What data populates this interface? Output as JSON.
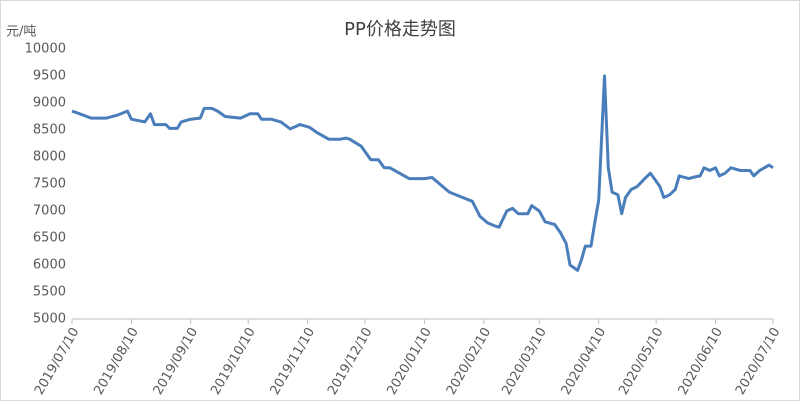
{
  "chart_data": {
    "type": "line",
    "title": "PP价格走势图",
    "y_label": "元/吨",
    "color": "#4a7ebb",
    "x": [
      "2019/07/10",
      "2019/07/14",
      "2019/07/20",
      "2019/07/28",
      "2019/08/03",
      "2019/08/08",
      "2019/08/10",
      "2019/08/17",
      "2019/08/20",
      "2019/08/22",
      "2019/08/28",
      "2019/08/30",
      "2019/09/03",
      "2019/09/05",
      "2019/09/10",
      "2019/09/15",
      "2019/09/17",
      "2019/09/21",
      "2019/09/24",
      "2019/09/28",
      "2019/10/06",
      "2019/10/11",
      "2019/10/15",
      "2019/10/17",
      "2019/10/22",
      "2019/10/27",
      "2019/11/01",
      "2019/11/06",
      "2019/11/11",
      "2019/11/15",
      "2019/11/21",
      "2019/11/27",
      "2019/11/30",
      "2019/12/02",
      "2019/12/08",
      "2019/12/13",
      "2019/12/17",
      "2019/12/20",
      "2019/12/23",
      "2019/12/28",
      "2020/01/02",
      "2020/01/08",
      "2020/01/10",
      "2020/01/14",
      "2020/01/18",
      "2020/01/23",
      "2020/01/30",
      "2020/02/04",
      "2020/02/08",
      "2020/02/12",
      "2020/02/16",
      "2020/02/18",
      "2020/02/22",
      "2020/02/25",
      "2020/02/28",
      "2020/03/04",
      "2020/03/06",
      "2020/03/10",
      "2020/03/13",
      "2020/03/18",
      "2020/03/21",
      "2020/03/24",
      "2020/03/26",
      "2020/03/30",
      "2020/04/01",
      "2020/04/03",
      "2020/04/06",
      "2020/04/08",
      "2020/04/10",
      "2020/04/13",
      "2020/04/15",
      "2020/04/17",
      "2020/04/20",
      "2020/04/22",
      "2020/04/24",
      "2020/04/27",
      "2020/04/30",
      "2020/05/04",
      "2020/05/07",
      "2020/05/09",
      "2020/05/12",
      "2020/05/14",
      "2020/05/17",
      "2020/05/20",
      "2020/05/22",
      "2020/05/27",
      "2020/05/30",
      "2020/06/02",
      "2020/06/04",
      "2020/06/07",
      "2020/06/10",
      "2020/06/12",
      "2020/06/15",
      "2020/06/18",
      "2020/06/23",
      "2020/06/28",
      "2020/06/30",
      "2020/07/03",
      "2020/07/08",
      "2020/07/10"
    ],
    "values": [
      8850,
      8800,
      8720,
      8720,
      8780,
      8850,
      8700,
      8650,
      8800,
      8600,
      8600,
      8530,
      8530,
      8650,
      8700,
      8720,
      8900,
      8900,
      8850,
      8750,
      8720,
      8800,
      8800,
      8700,
      8700,
      8650,
      8520,
      8600,
      8550,
      8450,
      8330,
      8330,
      8350,
      8330,
      8200,
      7950,
      7950,
      7800,
      7800,
      7700,
      7600,
      7600,
      7600,
      7620,
      7500,
      7350,
      7250,
      7180,
      6900,
      6780,
      6720,
      6700,
      7000,
      7050,
      6950,
      6950,
      7100,
      7000,
      6800,
      6750,
      6600,
      6400,
      6000,
      5900,
      6100,
      6350,
      6350,
      6800,
      7200,
      9500,
      7800,
      7350,
      7300,
      6950,
      7250,
      7400,
      7450,
      7600,
      7700,
      7600,
      7450,
      7250,
      7300,
      7400,
      7650,
      7600,
      7630,
      7650,
      7800,
      7750,
      7800,
      7650,
      7700,
      7800,
      7750,
      7750,
      7650,
      7750,
      7850,
      7800
    ],
    "xlim": [
      "2019/07/10",
      "2020/07/10"
    ],
    "xticks": [
      "2019/07/10",
      "2019/08/10",
      "2019/09/10",
      "2019/10/10",
      "2019/11/10",
      "2019/12/10",
      "2020/01/10",
      "2020/02/10",
      "2020/03/10",
      "2020/04/10",
      "2020/05/10",
      "2020/06/10",
      "2020/07/10"
    ],
    "ylim": [
      5000,
      10000
    ],
    "yticks": [
      5000,
      5500,
      6000,
      6500,
      7000,
      7500,
      8000,
      8500,
      9000,
      9500,
      10000
    ],
    "grid": false
  }
}
